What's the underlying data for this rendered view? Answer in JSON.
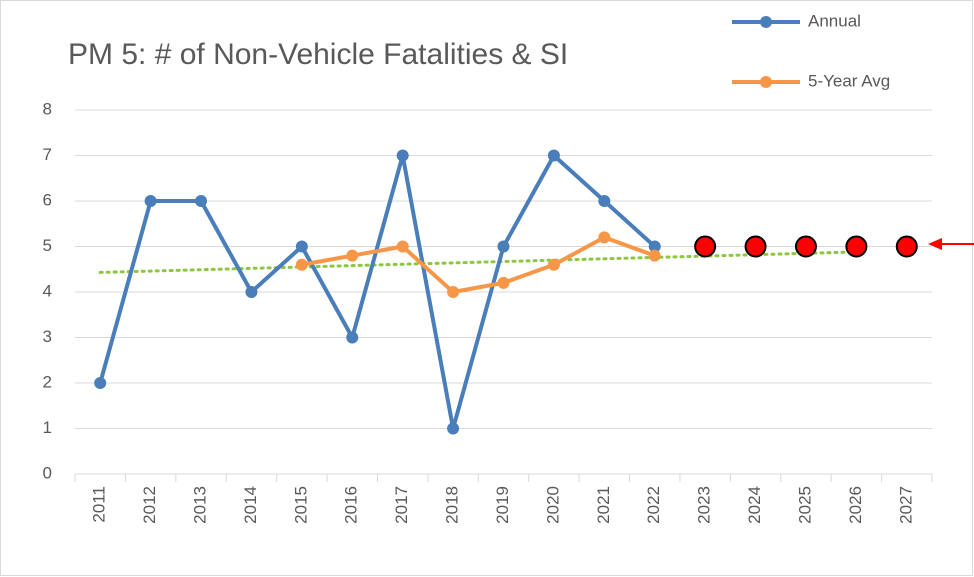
{
  "chart_data": {
    "type": "line",
    "title": "PM 5: # of Non-Vehicle Fatalities & SI",
    "categories": [
      "2011",
      "2012",
      "2013",
      "2014",
      "2015",
      "2016",
      "2017",
      "2018",
      "2019",
      "2020",
      "2021",
      "2022",
      "2023",
      "2024",
      "2025",
      "2026",
      "2027"
    ],
    "series": [
      {
        "name": "Annual",
        "color": "#4a7ebb",
        "values": [
          2,
          6,
          6,
          4,
          5,
          3,
          7,
          1,
          5,
          7,
          6,
          5,
          null,
          null,
          null,
          null,
          null
        ]
      },
      {
        "name": "5-Year Avg",
        "color": "#f79646",
        "values": [
          null,
          null,
          null,
          null,
          4.6,
          4.8,
          5,
          4,
          4.2,
          4.6,
          5.2,
          4.8,
          null,
          null,
          null,
          null,
          null
        ]
      }
    ],
    "targets": {
      "color": "#ff0000",
      "values": [
        null,
        null,
        null,
        null,
        null,
        null,
        null,
        null,
        null,
        null,
        null,
        null,
        5,
        5,
        5,
        5,
        5
      ]
    },
    "trendline": {
      "color": "#8dc63f",
      "values": [
        4.43,
        4.46,
        4.49,
        4.52,
        4.55,
        4.58,
        4.61,
        4.64,
        4.67,
        4.7,
        4.73,
        4.76,
        4.79,
        4.82,
        4.85,
        4.88,
        null
      ]
    },
    "ylim": [
      0,
      8
    ],
    "yticks": [
      0,
      1,
      2,
      3,
      4,
      5,
      6,
      7,
      8
    ],
    "grid": true
  }
}
